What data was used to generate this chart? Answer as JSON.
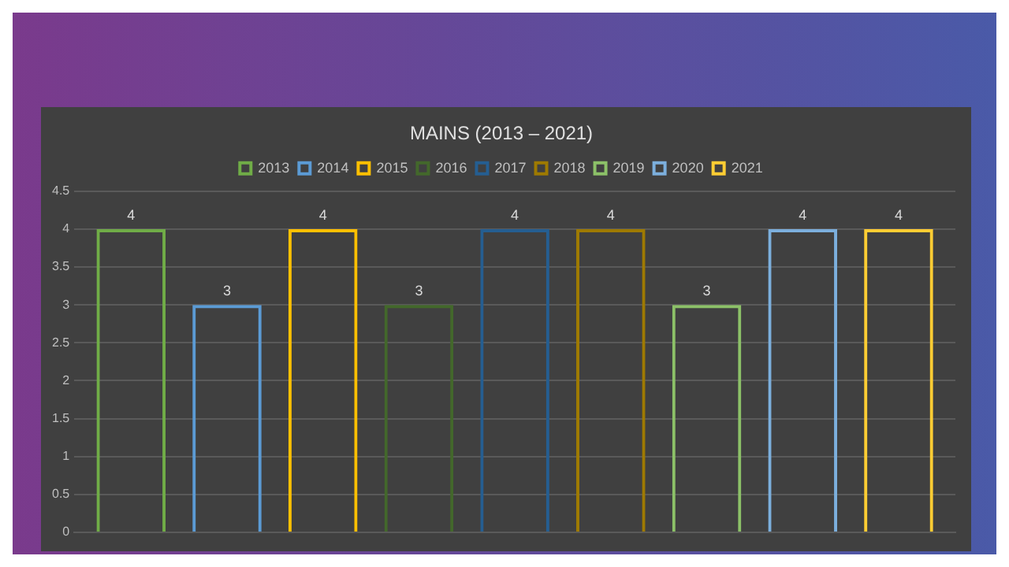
{
  "chart_data": {
    "type": "bar",
    "title": "MAINS (2013 – 2021)",
    "categories": [
      null
    ],
    "series": [
      {
        "name": "2013",
        "color": "#70ad47",
        "values": [
          4
        ]
      },
      {
        "name": "2014",
        "color": "#5b9bd5",
        "values": [
          3
        ]
      },
      {
        "name": "2015",
        "color": "#ffc000",
        "values": [
          4
        ]
      },
      {
        "name": "2016",
        "color": "#43682b",
        "values": [
          3
        ]
      },
      {
        "name": "2017",
        "color": "#255e91",
        "values": [
          4
        ]
      },
      {
        "name": "2018",
        "color": "#9e7a00",
        "values": [
          4
        ]
      },
      {
        "name": "2019",
        "color": "#8cc168",
        "values": [
          3
        ]
      },
      {
        "name": "2020",
        "color": "#7cafdd",
        "values": [
          4
        ]
      },
      {
        "name": "2021",
        "color": "#ffcd33",
        "values": [
          4
        ]
      }
    ],
    "ylim": [
      0,
      4.5
    ],
    "yticks": [
      0,
      0.5,
      1,
      1.5,
      2,
      2.5,
      3,
      3.5,
      4,
      4.5
    ],
    "grid": "y",
    "legend": "top",
    "data_labels": true
  }
}
